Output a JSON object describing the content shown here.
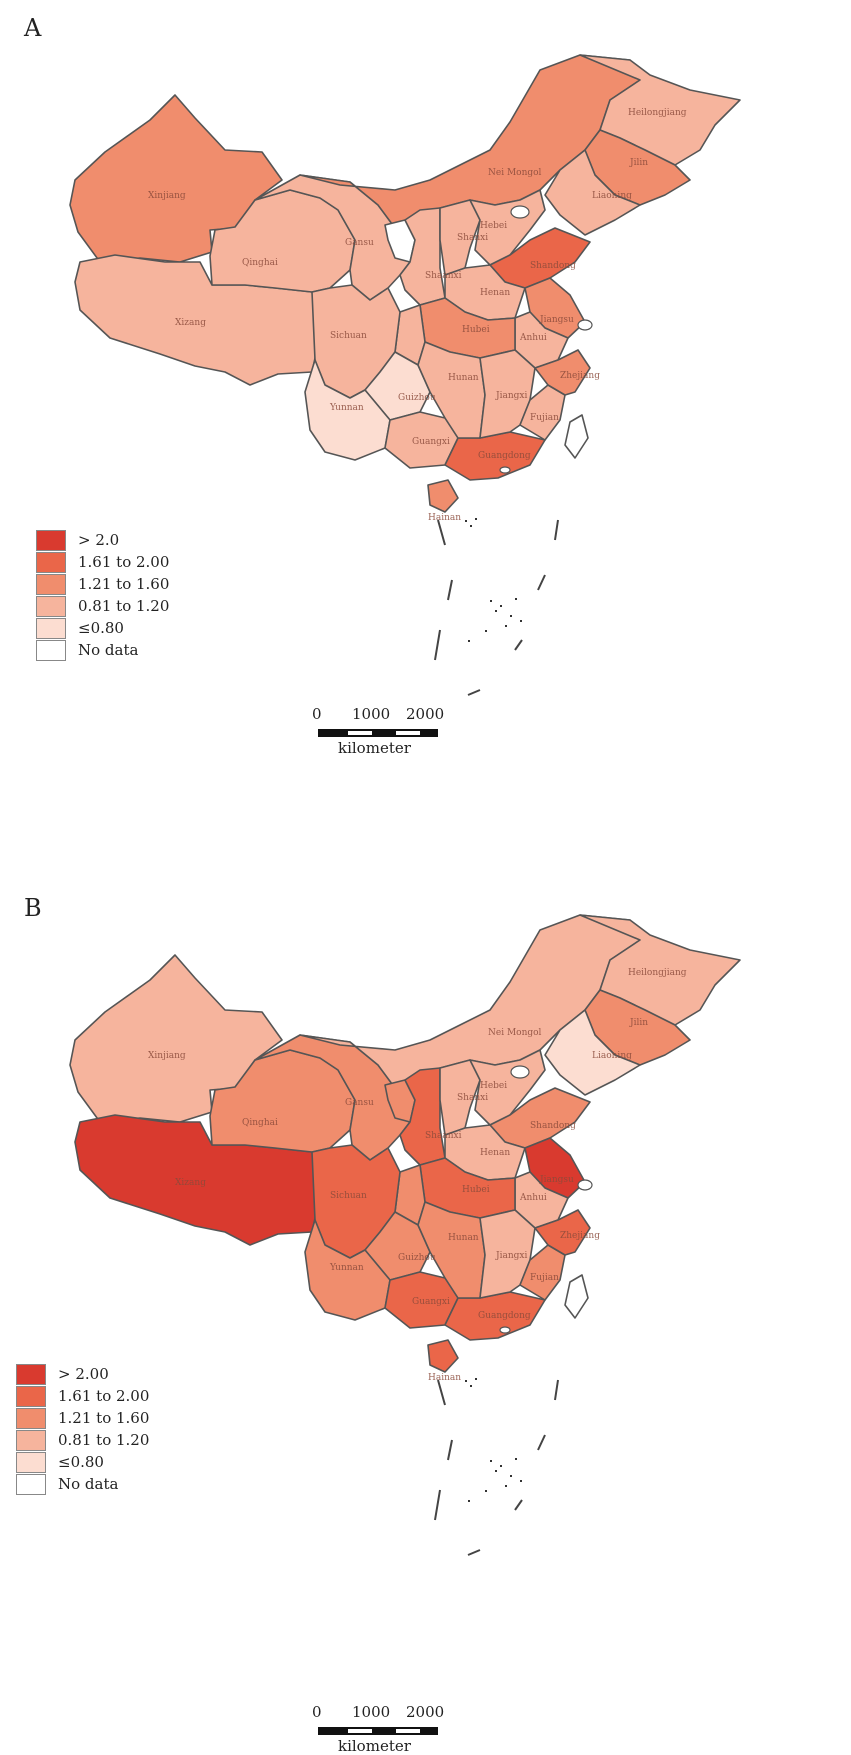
{
  "colors": {
    "c5": "#d93a2f",
    "c4": "#ea6649",
    "c3": "#f08d6d",
    "c2": "#f6b49d",
    "c1": "#fcddd1",
    "c0": "#ffffff",
    "border": "#555555"
  },
  "legend_labels": [
    "> 2.0",
    "1.61 to 2.00",
    "1.21 to 1.60",
    "0.81 to 1.20",
    "≤0.80",
    "No data"
  ],
  "legend_labels_b": [
    "> 2.00",
    "1.61 to 2.00",
    "1.21 to 1.60",
    "0.81 to 1.20",
    "≤0.80",
    "No data"
  ],
  "scale": {
    "t0": "0",
    "t1": "1000",
    "t2": "2000",
    "unit": "kilometer"
  },
  "panels": [
    {
      "label": "A",
      "provinces": {
        "Xinjiang": "c3",
        "Xizang": "c2",
        "Qinghai": "c2",
        "Gansu": "c2",
        "Nei Mongol": "c3",
        "Heilongjiang": "c2",
        "Jilin": "c3",
        "Liaoning": "c2",
        "Ningxia": "c0",
        "Shaanxi": "c2",
        "Shanxi": "c2",
        "Hebei": "c2",
        "Shandong": "c4",
        "Henan": "c2",
        "Jiangsu": "c3",
        "Anhui": "c2",
        "Hubei": "c3",
        "Chongqing": "c2",
        "Sichuan": "c2",
        "Guizhou": "c1",
        "Yunnan": "c1",
        "Guangxi": "c2",
        "Guangdong": "c4",
        "Hunan": "c2",
        "Jiangxi": "c2",
        "Fujian": "c2",
        "Zhejiang": "c3",
        "Hainan": "c3",
        "Taiwan": "c0"
      }
    },
    {
      "label": "B",
      "provinces": {
        "Xinjiang": "c2",
        "Xizang": "c5",
        "Qinghai": "c3",
        "Gansu": "c3",
        "Nei Mongol": "c2",
        "Heilongjiang": "c2",
        "Jilin": "c3",
        "Liaoning": "c1",
        "Ningxia": "c3",
        "Shaanxi": "c4",
        "Shanxi": "c2",
        "Hebei": "c2",
        "Shandong": "c3",
        "Henan": "c2",
        "Jiangsu": "c5",
        "Anhui": "c2",
        "Hubei": "c4",
        "Chongqing": "c3",
        "Sichuan": "c4",
        "Guizhou": "c3",
        "Yunnan": "c3",
        "Guangxi": "c4",
        "Guangdong": "c4",
        "Hunan": "c3",
        "Jiangxi": "c2",
        "Fujian": "c3",
        "Zhejiang": "c4",
        "Hainan": "c4",
        "Taiwan": "c0"
      }
    }
  ]
}
